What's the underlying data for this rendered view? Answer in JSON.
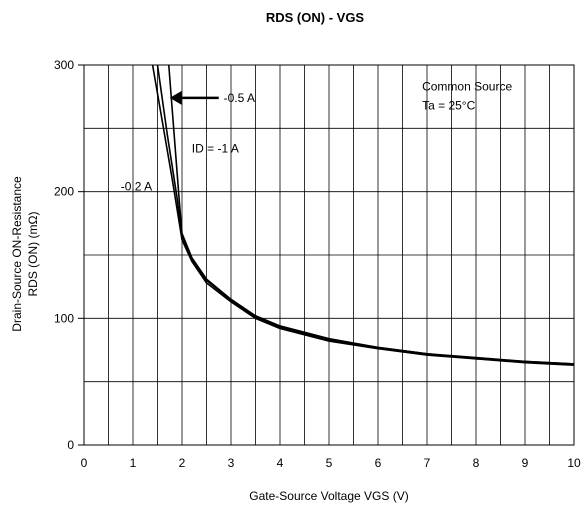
{
  "chart_data": {
    "type": "line",
    "title": "RDS (ON) - VGS",
    "xlabel": "Gate-Source Voltage  VGS (V)",
    "ylabel_line1": "Drain-Source ON-Resistance",
    "ylabel_line2": "RDS (ON)   (mΩ)",
    "xlim": [
      0,
      10
    ],
    "ylim": [
      0,
      300
    ],
    "x_ticks": [
      0,
      1,
      2,
      3,
      4,
      5,
      6,
      7,
      8,
      9,
      10
    ],
    "y_ticks_labeled": [
      0,
      100,
      200,
      300
    ],
    "x_grid_step": 0.5,
    "y_grid_step": 50,
    "grid": true,
    "series": [
      {
        "name": "-0.2 A",
        "x": [
          1.4,
          1.6,
          1.8,
          2.0,
          2.2,
          2.5,
          3.0,
          3.5,
          4.0,
          5.0,
          6.0,
          7.0,
          8.0,
          9.0,
          10.0
        ],
        "y": [
          300,
          255,
          210,
          162,
          145,
          128,
          113,
          100,
          92,
          82,
          76,
          71,
          68,
          65,
          63
        ]
      },
      {
        "name": "-0.5 A",
        "x": [
          1.5,
          1.7,
          1.9,
          2.0,
          2.2,
          2.5,
          3.0,
          3.5,
          4.0,
          5.0,
          6.0,
          7.0,
          8.0,
          9.0,
          10.0
        ],
        "y": [
          300,
          245,
          195,
          165,
          147,
          130,
          114,
          101,
          93,
          83,
          77,
          72,
          68,
          66,
          64
        ]
      },
      {
        "name": "ID = -1 A",
        "x": [
          1.73,
          1.85,
          1.95,
          2.0,
          2.2,
          2.5,
          3.0,
          3.5,
          4.0,
          5.0,
          6.0,
          7.0,
          8.0,
          9.0,
          10.0
        ],
        "y": [
          300,
          240,
          190,
          167,
          148,
          131,
          115,
          102,
          94,
          84,
          77,
          72,
          69,
          66,
          64
        ]
      }
    ],
    "annotations": [
      {
        "text": "Common Source",
        "x": 6.9,
        "y": 283
      },
      {
        "text": "Ta = 25°C",
        "x": 6.9,
        "y": 268
      },
      {
        "text": "-0.5 A",
        "x": 2.85,
        "y": 274
      },
      {
        "text": "ID = -1 A",
        "x": 2.2,
        "y": 234
      },
      {
        "text": "-0.2 A",
        "x": 0.75,
        "y": 204
      }
    ],
    "arrow": {
      "from": [
        2.75,
        274
      ],
      "to": [
        1.75,
        274
      ]
    }
  }
}
